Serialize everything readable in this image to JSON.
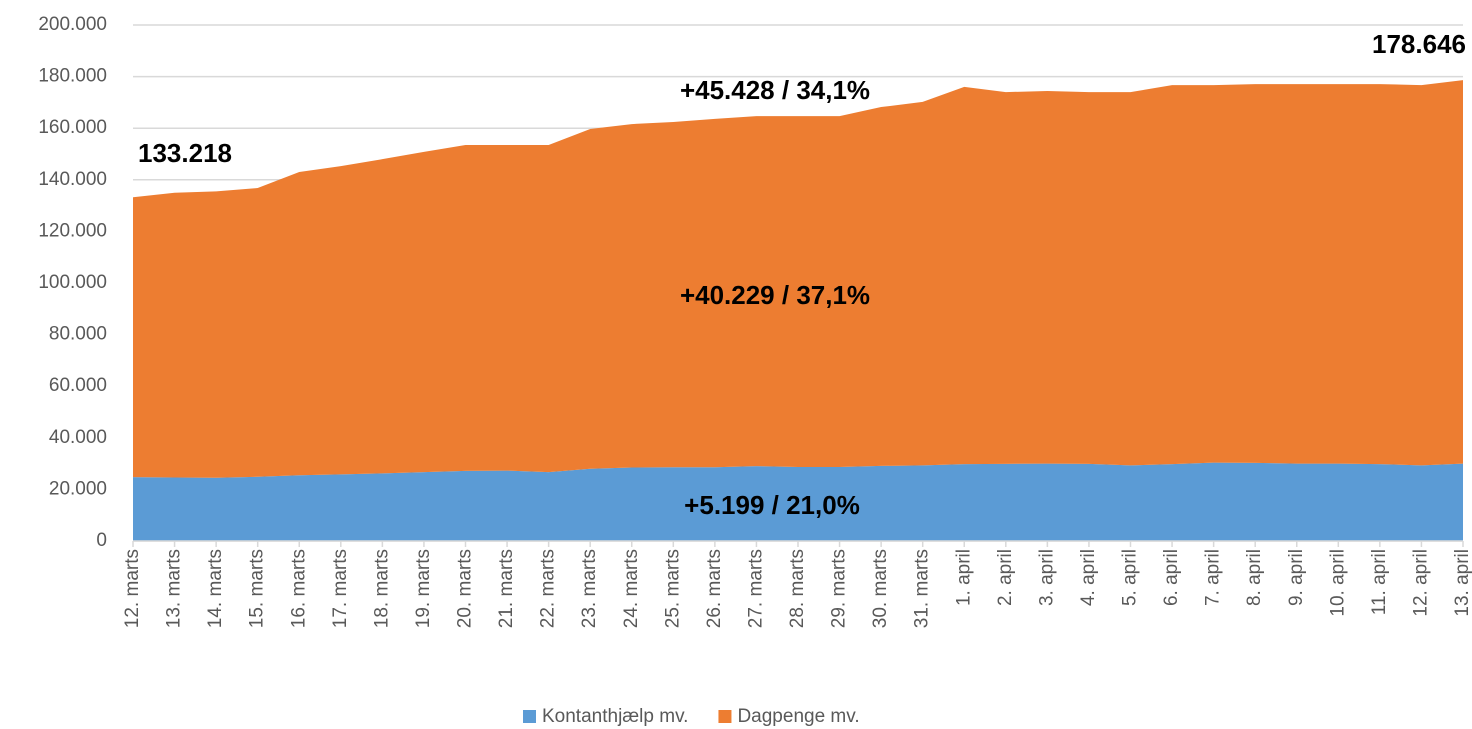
{
  "chart_data": {
    "type": "stacked_area",
    "categories": [
      "12. marts",
      "13. marts",
      "14. marts",
      "15. marts",
      "16. marts",
      "17. marts",
      "18. marts",
      "19. marts",
      "20. marts",
      "21. marts",
      "22. marts",
      "23. marts",
      "24. marts",
      "25. marts",
      "26. marts",
      "27. marts",
      "28. marts",
      "29. marts",
      "30. marts",
      "31. marts",
      "1. april",
      "2. april",
      "3. april",
      "4. april",
      "5. april",
      "6. april",
      "7. april",
      "8. april",
      "9. april",
      "10. april",
      "11. april",
      "12. april",
      "13. april"
    ],
    "series": [
      {
        "name": "Kontanthjælp mv.",
        "color": "#5b9bd5",
        "values": [
          24770,
          24600,
          24500,
          24900,
          25500,
          25800,
          26200,
          26700,
          27200,
          27300,
          26700,
          28000,
          28500,
          28600,
          28600,
          29000,
          28700,
          28700,
          29100,
          29300,
          29800,
          29900,
          30000,
          29900,
          29300,
          29800,
          30400,
          30300,
          30000,
          30000,
          29800,
          29300,
          29969
        ]
      },
      {
        "name": "Dagpenge mv.",
        "color": "#ed7d31",
        "values": [
          108448,
          110400,
          111000,
          111900,
          117500,
          119500,
          121800,
          124100,
          126300,
          126200,
          126800,
          131700,
          133100,
          133800,
          135000,
          135700,
          136000,
          136000,
          139100,
          140900,
          146200,
          144100,
          144400,
          144100,
          144700,
          146900,
          146300,
          146800,
          147100,
          147100,
          147300,
          147400,
          148677
        ]
      }
    ],
    "ylim": [
      0,
      200000
    ],
    "yticks": [
      0,
      {
        "value": 20000,
        "label": "20.000"
      },
      {
        "value": 40000,
        "label": "40.000"
      },
      {
        "value": 60000,
        "label": "60.000"
      },
      {
        "value": 80000,
        "label": "80.000"
      },
      {
        "value": 100000,
        "label": "100.000"
      },
      {
        "value": 120000,
        "label": "120.000"
      },
      {
        "value": 140000,
        "label": "140.000"
      },
      {
        "value": 160000,
        "label": "160.000"
      },
      {
        "value": 180000,
        "label": "180.000"
      },
      {
        "value": 200000,
        "label": "200.000"
      }
    ],
    "grid": true,
    "legend": "bottom",
    "annotations": [
      "133.218",
      "178.646",
      "+45.428 / 34,1%",
      "+40.229 / 37,1%",
      "+5.199 / 21,0%"
    ]
  }
}
